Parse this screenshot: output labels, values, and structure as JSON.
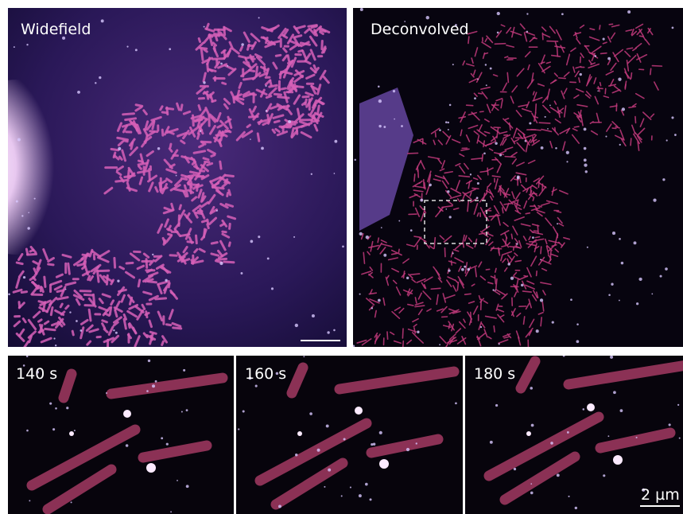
{
  "figure": {
    "top_panels": [
      {
        "label": "Widefield"
      },
      {
        "label": "Deconvolved"
      }
    ],
    "bottom_panels": [
      {
        "label": "140 s"
      },
      {
        "label": "160 s"
      },
      {
        "label": "180 s"
      }
    ],
    "scale_bar_label": "2 µm"
  }
}
